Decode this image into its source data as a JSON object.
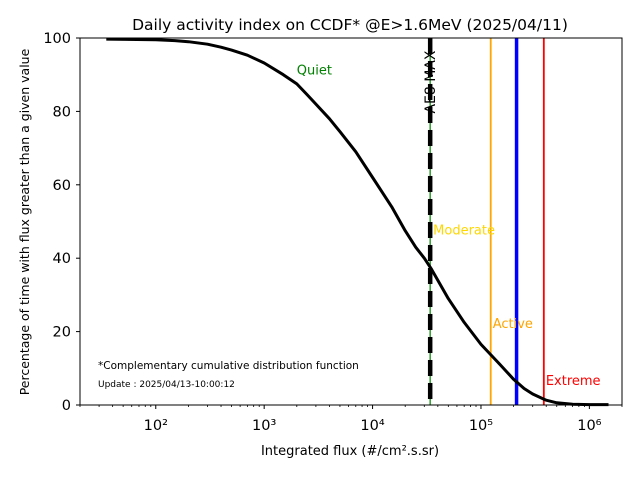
{
  "chart_data": {
    "type": "line",
    "title": "Daily activity index on CCDF* @E>1.6MeV (2025/04/11)",
    "xlabel": "Integrated flux (#/cm².s.sr)",
    "ylabel": "Percentage of time with flux greater than a given value",
    "x_scale": "log",
    "xlim": [
      20,
      2000000
    ],
    "ylim": [
      0,
      100
    ],
    "x_ticks": [
      {
        "value": 100,
        "label": "10²"
      },
      {
        "value": 1000,
        "label": "10³"
      },
      {
        "value": 10000,
        "label": "10⁴"
      },
      {
        "value": 100000,
        "label": "10⁵"
      },
      {
        "value": 1000000,
        "label": "10⁶"
      }
    ],
    "y_ticks": [
      0,
      20,
      40,
      60,
      80,
      100
    ],
    "series": [
      {
        "color": "#000000",
        "x": [
          35,
          100,
          150,
          200,
          300,
          400,
          500,
          700,
          1000,
          1500,
          2000,
          2500,
          3000,
          4000,
          5000,
          7000,
          10000,
          15000,
          20000,
          25000,
          30000,
          35000,
          40000,
          50000,
          70000,
          100000,
          125000,
          150000,
          200000,
          250000,
          300000,
          400000,
          500000,
          700000,
          1000000,
          1500000
        ],
        "y": [
          99.7,
          99.5,
          99.3,
          99.0,
          98.3,
          97.5,
          96.7,
          95.3,
          93.2,
          90.0,
          87.5,
          84.5,
          82.0,
          78.0,
          74.5,
          69.0,
          62.0,
          54.0,
          47.5,
          43.0,
          40.0,
          37.0,
          34.0,
          29.0,
          22.5,
          16.5,
          13.5,
          11.0,
          7.0,
          4.5,
          3.0,
          1.3,
          0.6,
          0.2,
          0.1,
          0.1
        ]
      }
    ],
    "thresholds": [
      {
        "name": "AE8 MAX",
        "x": 34000,
        "color": "#000000"
      },
      {
        "name": "Moderate",
        "x": 34000,
        "color": "#ffd700"
      },
      {
        "name": "Active",
        "x": 123000,
        "color": "#ffa500"
      },
      {
        "name": "Blue",
        "x": 213000,
        "color": "#0000ff"
      },
      {
        "name": "Extreme",
        "x": 380000,
        "color": "#ff0000"
      }
    ],
    "annotations": {
      "quiet": {
        "text": "Quiet",
        "color": "#008000"
      },
      "moderate": {
        "text": "Moderate",
        "color": "#ffd700"
      },
      "active": {
        "text": "Active",
        "color": "#ffa500"
      },
      "extreme": {
        "text": "Extreme",
        "color": "#ff0000"
      },
      "ae8": {
        "text": "AE8 MAX",
        "color": "#000000"
      },
      "footnote": "*Complementary cumulative distribution function",
      "update": "Update : 2025/04/13-10:00:12"
    },
    "grid": false
  }
}
